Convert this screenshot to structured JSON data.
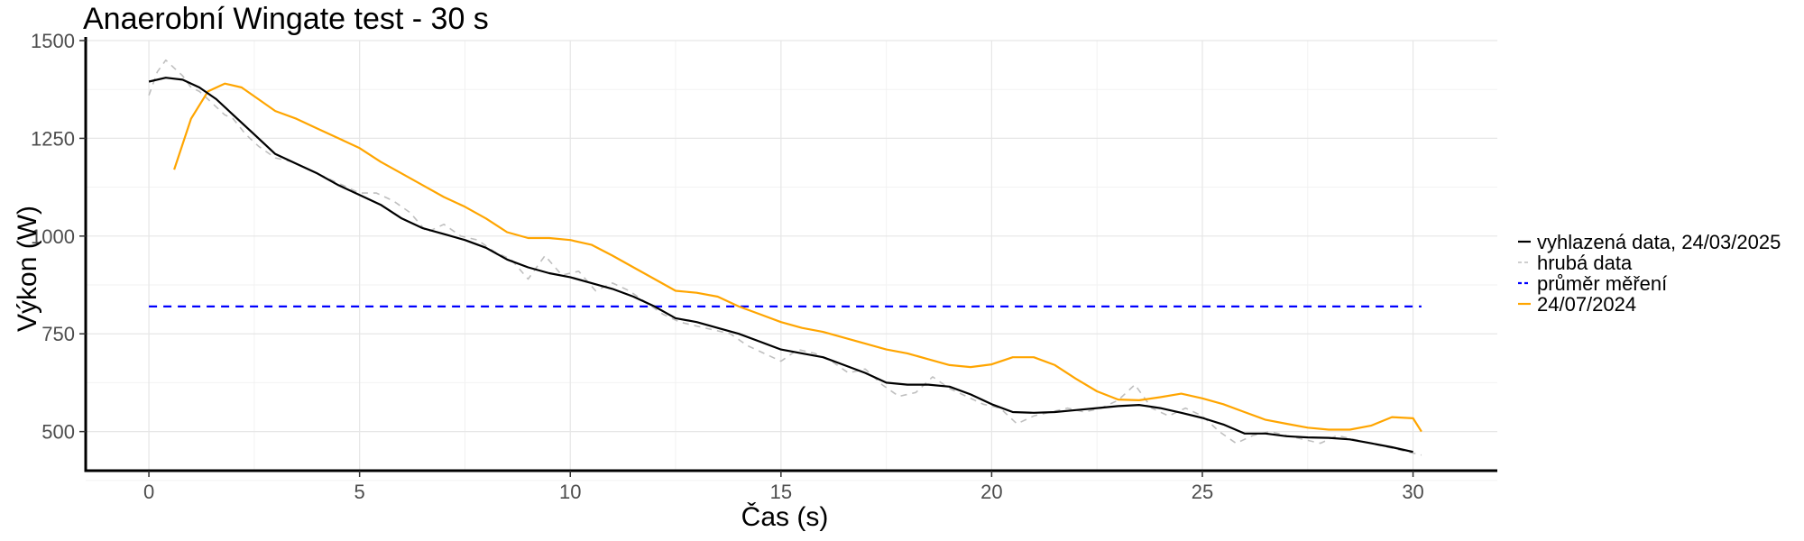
{
  "chart_data": {
    "type": "line",
    "title": "Anaerobní Wingate test - 30 s",
    "xlabel": "Čas (s)",
    "ylabel": "Výkon (W)",
    "xlim": [
      -1.5,
      32
    ],
    "ylim": [
      400,
      1500
    ],
    "x_ticks": [
      0,
      5,
      10,
      15,
      20,
      25,
      30
    ],
    "y_ticks": [
      500,
      750,
      1000,
      1250,
      1500
    ],
    "grid": true,
    "legend_position": "right",
    "series": [
      {
        "name": "vyhlazená data, 24/03/2025",
        "color": "#000000",
        "dash": "solid",
        "x": [
          0,
          0.4,
          0.8,
          1.2,
          1.6,
          2.0,
          2.5,
          3.0,
          3.5,
          4.0,
          4.5,
          5.0,
          5.5,
          6.0,
          6.5,
          7.0,
          7.5,
          8.0,
          8.5,
          9.0,
          9.5,
          10.0,
          10.5,
          11.0,
          11.5,
          12.0,
          12.5,
          13.0,
          13.5,
          14.0,
          14.5,
          15.0,
          15.5,
          16.0,
          16.5,
          17.0,
          17.5,
          18.0,
          18.5,
          19.0,
          19.5,
          20.0,
          20.5,
          21.0,
          21.5,
          22.0,
          22.5,
          23.0,
          23.5,
          24.0,
          24.5,
          25.0,
          25.5,
          26.0,
          26.5,
          27.0,
          27.5,
          28.0,
          28.5,
          29.0,
          29.5,
          30.0
        ],
        "y": [
          1395,
          1405,
          1400,
          1380,
          1350,
          1310,
          1260,
          1210,
          1185,
          1160,
          1130,
          1105,
          1080,
          1045,
          1020,
          1005,
          990,
          970,
          940,
          920,
          905,
          895,
          880,
          865,
          845,
          820,
          790,
          780,
          765,
          750,
          730,
          710,
          700,
          690,
          670,
          650,
          625,
          620,
          620,
          615,
          595,
          570,
          550,
          548,
          550,
          555,
          560,
          565,
          568,
          560,
          548,
          535,
          518,
          495,
          495,
          488,
          485,
          484,
          480,
          470,
          460,
          448
        ]
      },
      {
        "name": "hrubá data",
        "color": "#bfbfbf",
        "dash": "dashed",
        "x": [
          0,
          0.2,
          0.4,
          0.6,
          0.8,
          1.0,
          1.2,
          1.4,
          1.6,
          1.8,
          2.0,
          2.3,
          2.6,
          3.0,
          3.4,
          3.8,
          4.2,
          4.6,
          5.0,
          5.4,
          5.8,
          6.2,
          6.6,
          7.0,
          7.4,
          7.8,
          8.2,
          8.6,
          9.0,
          9.4,
          9.8,
          10.2,
          10.6,
          11.0,
          11.4,
          11.8,
          12.2,
          12.6,
          13.0,
          13.4,
          13.8,
          14.2,
          14.6,
          15.0,
          15.4,
          15.8,
          16.2,
          16.6,
          17.0,
          17.4,
          17.8,
          18.2,
          18.6,
          19.0,
          19.4,
          19.8,
          20.2,
          20.6,
          21.0,
          21.4,
          21.8,
          22.2,
          22.6,
          23.0,
          23.4,
          23.8,
          24.2,
          24.6,
          25.0,
          25.4,
          25.8,
          26.2,
          26.6,
          27.0,
          27.4,
          27.8,
          28.2,
          28.6,
          29.0,
          29.4,
          29.8,
          30.2
        ],
        "y": [
          1360,
          1420,
          1450,
          1430,
          1410,
          1380,
          1370,
          1350,
          1330,
          1310,
          1300,
          1260,
          1230,
          1200,
          1190,
          1170,
          1150,
          1130,
          1110,
          1110,
          1090,
          1060,
          1010,
          1030,
          1000,
          990,
          960,
          940,
          890,
          950,
          900,
          910,
          860,
          880,
          860,
          830,
          800,
          780,
          770,
          760,
          750,
          720,
          700,
          680,
          710,
          700,
          680,
          650,
          660,
          620,
          590,
          600,
          640,
          610,
          590,
          570,
          560,
          520,
          540,
          550,
          560,
          550,
          560,
          580,
          620,
          560,
          540,
          560,
          540,
          500,
          470,
          490,
          500,
          490,
          480,
          470,
          490,
          480,
          470,
          460,
          450,
          440
        ]
      },
      {
        "name": "průměr měření",
        "color": "#0000ff",
        "dash": "dashed",
        "x": [
          0,
          30.2
        ],
        "y": [
          820,
          820
        ]
      },
      {
        "name": "24/07/2024",
        "color": "#ffa500",
        "dash": "solid",
        "x": [
          0.6,
          1.0,
          1.4,
          1.8,
          2.2,
          2.6,
          3.0,
          3.5,
          4.0,
          4.5,
          5.0,
          5.5,
          6.0,
          6.5,
          7.0,
          7.5,
          8.0,
          8.5,
          9.0,
          9.5,
          10.0,
          10.5,
          11.0,
          11.5,
          12.0,
          12.5,
          13.0,
          13.5,
          14.0,
          14.5,
          15.0,
          15.5,
          16.0,
          16.5,
          17.0,
          17.5,
          18.0,
          18.5,
          19.0,
          19.5,
          20.0,
          20.5,
          21.0,
          21.5,
          22.0,
          22.5,
          23.0,
          23.5,
          24.0,
          24.5,
          25.0,
          25.5,
          26.0,
          26.5,
          27.0,
          27.5,
          28.0,
          28.5,
          29.0,
          29.5,
          30.0,
          30.2
        ],
        "y": [
          1170,
          1300,
          1370,
          1390,
          1380,
          1350,
          1320,
          1300,
          1275,
          1250,
          1225,
          1190,
          1160,
          1130,
          1100,
          1075,
          1045,
          1010,
          995,
          995,
          990,
          978,
          950,
          920,
          890,
          860,
          855,
          845,
          820,
          800,
          780,
          765,
          755,
          740,
          725,
          710,
          700,
          685,
          670,
          665,
          672,
          690,
          690,
          670,
          635,
          603,
          582,
          580,
          588,
          597,
          585,
          570,
          550,
          530,
          520,
          510,
          505,
          505,
          515,
          537,
          534,
          500
        ]
      }
    ]
  }
}
